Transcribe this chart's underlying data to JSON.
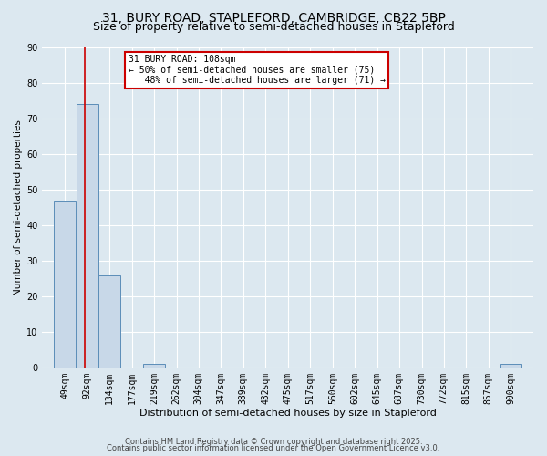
{
  "title1": "31, BURY ROAD, STAPLEFORD, CAMBRIDGE, CB22 5BP",
  "title2": "Size of property relative to semi-detached houses in Stapleford",
  "xlabel": "Distribution of semi-detached houses by size in Stapleford",
  "ylabel": "Number of semi-detached properties",
  "footer1": "Contains HM Land Registry data © Crown copyright and database right 2025.",
  "footer2": "Contains public sector information licensed under the Open Government Licence v3.0.",
  "bin_labels": [
    "49sqm",
    "92sqm",
    "134sqm",
    "177sqm",
    "219sqm",
    "262sqm",
    "304sqm",
    "347sqm",
    "389sqm",
    "432sqm",
    "475sqm",
    "517sqm",
    "560sqm",
    "602sqm",
    "645sqm",
    "687sqm",
    "730sqm",
    "772sqm",
    "815sqm",
    "857sqm",
    "900sqm"
  ],
  "bin_edges": [
    49,
    92,
    134,
    177,
    219,
    262,
    304,
    347,
    389,
    432,
    475,
    517,
    560,
    602,
    645,
    687,
    730,
    772,
    815,
    857,
    900
  ],
  "bar_values": [
    47,
    74,
    26,
    0,
    1,
    0,
    0,
    0,
    0,
    0,
    0,
    0,
    0,
    0,
    0,
    0,
    0,
    0,
    0,
    0,
    1
  ],
  "bar_color": "#c8d8e8",
  "bar_edge_color": "#5b8db8",
  "property_size": 108,
  "red_line_color": "#cc0000",
  "annotation_line1": "31 BURY ROAD: 108sqm",
  "annotation_line2": "← 50% of semi-detached houses are smaller (75)",
  "annotation_line3": "   48% of semi-detached houses are larger (71) →",
  "annotation_box_color": "#ffffff",
  "annotation_box_edge": "#cc0000",
  "ylim": [
    0,
    90
  ],
  "yticks": [
    0,
    10,
    20,
    30,
    40,
    50,
    60,
    70,
    80,
    90
  ],
  "bg_color": "#dce8f0",
  "grid_color": "#ffffff",
  "title1_fontsize": 10,
  "title2_fontsize": 9,
  "xlabel_fontsize": 8,
  "ylabel_fontsize": 7.5,
  "tick_fontsize": 7,
  "annot_fontsize": 7,
  "footer_fontsize": 6
}
